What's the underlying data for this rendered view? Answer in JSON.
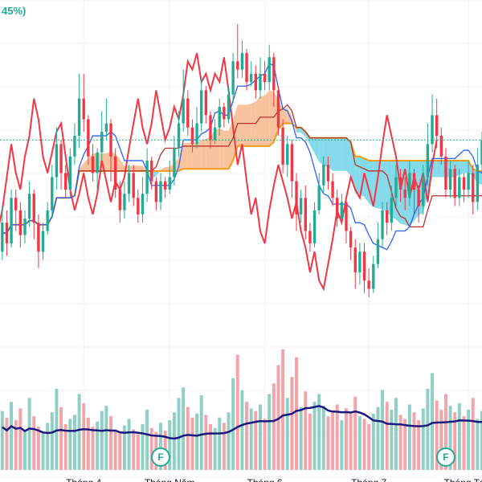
{
  "header": {
    "change_text": "45%)"
  },
  "colors": {
    "up": "#22ab94",
    "down": "#f23645",
    "volume_up": "#8fd0c5",
    "volume_down": "#f4a3a8",
    "kumo_bull": "#f7b98b",
    "kumo_bear": "#6fd3e8",
    "tenkan": "#2962ff",
    "kijun": "#b7312c",
    "chikou": "#f23645",
    "span_b_line": "#f29d1a",
    "volume_ma": "#1a1a7e",
    "grid": "#f0f3fa",
    "price_line": "#22ab94",
    "earnings_marker": "#22ab94"
  },
  "chart_data": {
    "type": "candlestick",
    "title": "",
    "ylim": [
      0,
      100
    ],
    "grid": true,
    "x_ticks": [
      {
        "label": "Tháng 4",
        "index": 18
      },
      {
        "label": "Tháng Năm",
        "index": 37
      },
      {
        "label": "Tháng 6",
        "index": 58
      },
      {
        "label": "Tháng 7",
        "index": 81
      },
      {
        "label": "Tháng Tám",
        "index": 103
      }
    ],
    "last_price": 72,
    "candles": [
      [
        45,
        52,
        56,
        43
      ],
      [
        52,
        47,
        55,
        44
      ],
      [
        47,
        58,
        60,
        46
      ],
      [
        58,
        55,
        60,
        50
      ],
      [
        55,
        49,
        57,
        46
      ],
      [
        49,
        53,
        55,
        47
      ],
      [
        53,
        59,
        62,
        51
      ],
      [
        59,
        52,
        60,
        48
      ],
      [
        52,
        45,
        54,
        41
      ],
      [
        45,
        50,
        52,
        43
      ],
      [
        50,
        55,
        57,
        49
      ],
      [
        55,
        63,
        66,
        53
      ],
      [
        63,
        71,
        75,
        60
      ],
      [
        71,
        64,
        72,
        60
      ],
      [
        64,
        60,
        66,
        58
      ],
      [
        60,
        68,
        70,
        58
      ],
      [
        68,
        73,
        76,
        66
      ],
      [
        73,
        82,
        88,
        70
      ],
      [
        82,
        77,
        88,
        74
      ],
      [
        77,
        68,
        78,
        66
      ],
      [
        68,
        64,
        71,
        62
      ],
      [
        64,
        69,
        70,
        60
      ],
      [
        69,
        74,
        79,
        67
      ],
      [
        74,
        76,
        82,
        72
      ],
      [
        76,
        68,
        77,
        62
      ],
      [
        68,
        60,
        70,
        58
      ],
      [
        60,
        55,
        62,
        52
      ],
      [
        55,
        59,
        62,
        53
      ],
      [
        59,
        64,
        66,
        57
      ],
      [
        64,
        58,
        66,
        56
      ],
      [
        58,
        54,
        60,
        52
      ],
      [
        54,
        59,
        63,
        52
      ],
      [
        59,
        67,
        70,
        57
      ],
      [
        67,
        62,
        68,
        60
      ],
      [
        62,
        57,
        63,
        55
      ],
      [
        57,
        62,
        64,
        55
      ],
      [
        62,
        60,
        63,
        58
      ],
      [
        60,
        63,
        67,
        59
      ],
      [
        63,
        70,
        73,
        61
      ],
      [
        70,
        76,
        79,
        68
      ],
      [
        76,
        82,
        89,
        74
      ],
      [
        82,
        75,
        84,
        73
      ],
      [
        75,
        71,
        77,
        69
      ],
      [
        71,
        76,
        80,
        70
      ],
      [
        76,
        84,
        87,
        74
      ],
      [
        84,
        78,
        85,
        76
      ],
      [
        78,
        72,
        79,
        70
      ],
      [
        72,
        75,
        77,
        71
      ],
      [
        75,
        80,
        82,
        73
      ],
      [
        80,
        77,
        81,
        75
      ],
      [
        77,
        83,
        85,
        76
      ],
      [
        83,
        91,
        93,
        81
      ],
      [
        91,
        89,
        100,
        87
      ],
      [
        89,
        93,
        96,
        87
      ],
      [
        93,
        86,
        94,
        84
      ],
      [
        86,
        88,
        91,
        85
      ],
      [
        88,
        84,
        90,
        82
      ],
      [
        84,
        88,
        92,
        82
      ],
      [
        88,
        86,
        91,
        84
      ],
      [
        86,
        92,
        95,
        84
      ],
      [
        92,
        84,
        93,
        80
      ],
      [
        84,
        75,
        85,
        73
      ],
      [
        75,
        66,
        77,
        64
      ],
      [
        66,
        71,
        73,
        63
      ],
      [
        71,
        62,
        72,
        58
      ],
      [
        62,
        54,
        64,
        50
      ],
      [
        54,
        58,
        60,
        52
      ],
      [
        58,
        50,
        61,
        48
      ],
      [
        50,
        47,
        52,
        45
      ],
      [
        47,
        55,
        57,
        46
      ],
      [
        55,
        61,
        64,
        54
      ],
      [
        61,
        66,
        68,
        59
      ],
      [
        66,
        62,
        68,
        60
      ],
      [
        62,
        58,
        64,
        56
      ],
      [
        58,
        53,
        60,
        51
      ],
      [
        53,
        57,
        59,
        52
      ],
      [
        57,
        50,
        58,
        47
      ],
      [
        50,
        46,
        51,
        43
      ],
      [
        46,
        40,
        48,
        36
      ],
      [
        40,
        45,
        47,
        37
      ],
      [
        45,
        38,
        47,
        35
      ],
      [
        38,
        36,
        41,
        34
      ],
      [
        36,
        42,
        44,
        35
      ],
      [
        42,
        48,
        52,
        41
      ],
      [
        48,
        55,
        57,
        46
      ],
      [
        55,
        52,
        57,
        49
      ],
      [
        52,
        58,
        61,
        50
      ],
      [
        58,
        63,
        66,
        56
      ],
      [
        63,
        60,
        65,
        57
      ],
      [
        60,
        58,
        63,
        55
      ],
      [
        58,
        64,
        67,
        56
      ],
      [
        64,
        60,
        65,
        54
      ],
      [
        60,
        56,
        61,
        52
      ],
      [
        56,
        63,
        66,
        54
      ],
      [
        63,
        71,
        76,
        61
      ],
      [
        71,
        78,
        83,
        69
      ],
      [
        78,
        73,
        82,
        70
      ],
      [
        73,
        68,
        75,
        66
      ],
      [
        68,
        60,
        70,
        58
      ],
      [
        60,
        65,
        67,
        58
      ],
      [
        65,
        58,
        66,
        56
      ],
      [
        58,
        63,
        65,
        56
      ],
      [
        63,
        60,
        64,
        57
      ],
      [
        60,
        64,
        67,
        58
      ],
      [
        64,
        57,
        66,
        54
      ],
      [
        57,
        66,
        70,
        55
      ],
      [
        66,
        72,
        74,
        64
      ]
    ],
    "volume": [
      45,
      40,
      52,
      38,
      47,
      30,
      55,
      41,
      33,
      28,
      36,
      44,
      62,
      48,
      35,
      39,
      42,
      58,
      51,
      40,
      33,
      37,
      45,
      49,
      41,
      30,
      28,
      34,
      39,
      31,
      27,
      35,
      46,
      32,
      29,
      36,
      30,
      38,
      44,
      55,
      63,
      48,
      40,
      43,
      57,
      42,
      35,
      32,
      40,
      36,
      44,
      70,
      88,
      61,
      52,
      47,
      45,
      50,
      39,
      58,
      66,
      80,
      92,
      55,
      71,
      86,
      48,
      60,
      43,
      52,
      58,
      49,
      41,
      45,
      50,
      38,
      47,
      44,
      56,
      41,
      39,
      35,
      43,
      48,
      61,
      52,
      46,
      55,
      42,
      39,
      50,
      44,
      38,
      47,
      62,
      74,
      53,
      46,
      58,
      49,
      44,
      51,
      41,
      46,
      55,
      39,
      45
    ]
  }
}
